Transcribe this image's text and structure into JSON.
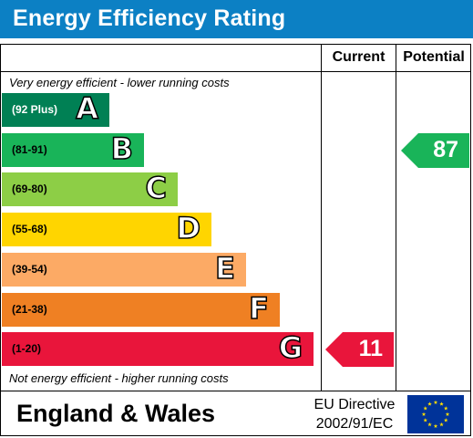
{
  "chart_data": {
    "type": "bar",
    "title": "Energy Efficiency Rating",
    "columns": [
      "Current",
      "Potential"
    ],
    "top_note": "Very energy efficient - lower running costs",
    "bottom_note": "Not energy efficient - higher running costs",
    "bands": [
      {
        "range": "(92 Plus)",
        "letter": "A",
        "color": "#008054"
      },
      {
        "range": "(81-91)",
        "letter": "B",
        "color": "#19b459"
      },
      {
        "range": "(69-80)",
        "letter": "C",
        "color": "#8dce46"
      },
      {
        "range": "(55-68)",
        "letter": "D",
        "color": "#ffd500"
      },
      {
        "range": "(39-54)",
        "letter": "E",
        "color": "#fcaa65"
      },
      {
        "range": "(21-38)",
        "letter": "F",
        "color": "#ef8023"
      },
      {
        "range": "(1-20)",
        "letter": "G",
        "color": "#e9153b"
      }
    ],
    "current": {
      "value": "11",
      "band": "G",
      "color": "#e9153b"
    },
    "potential": {
      "value": "87",
      "band": "B",
      "color": "#19b459"
    }
  },
  "footer": {
    "region": "England & Wales",
    "directive_line1": "EU Directive",
    "directive_line2": "2002/91/EC"
  },
  "colors": {
    "header": "#0c80c4",
    "eu_flag_blue": "#003399",
    "eu_flag_star": "#ffdd00"
  }
}
